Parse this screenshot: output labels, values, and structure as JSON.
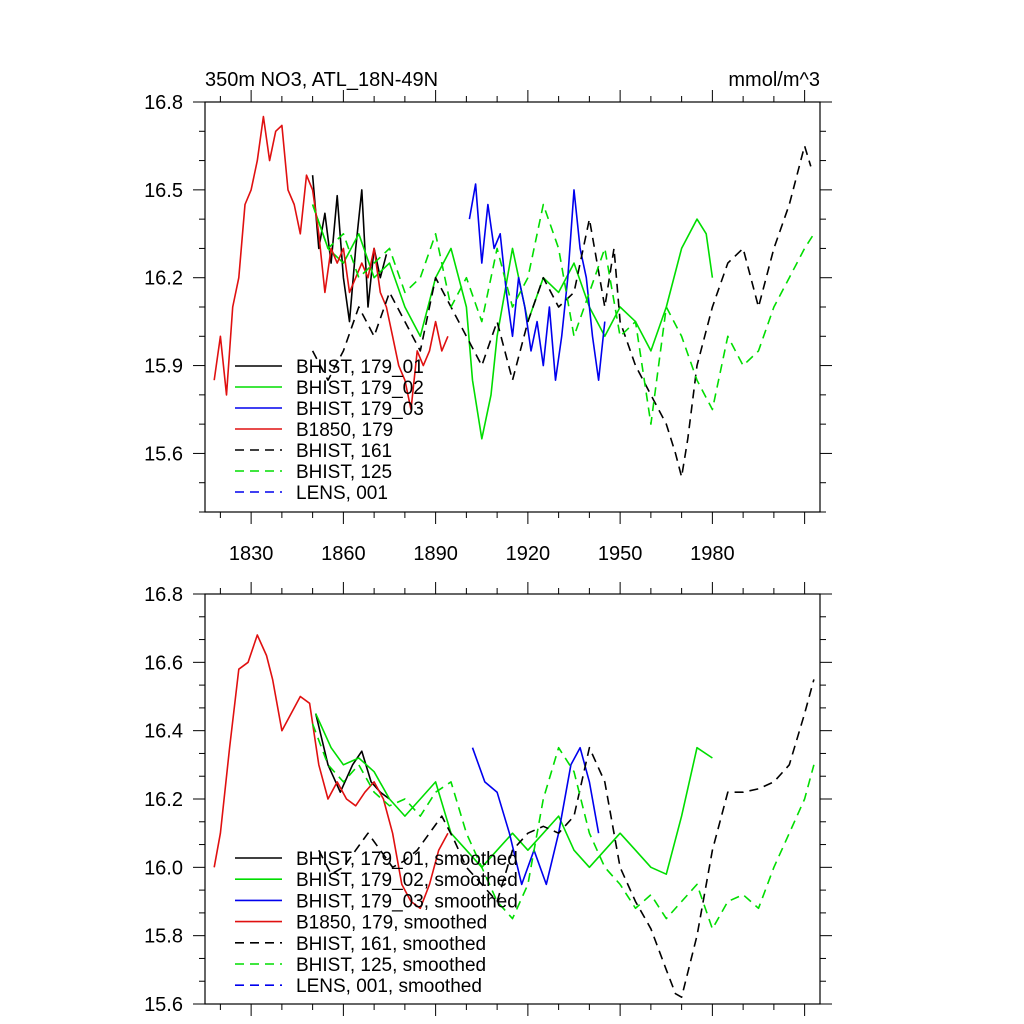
{
  "header": {
    "title": "350m NO3, ATL_18N-49N",
    "units": "mmol/m^3"
  },
  "colors": {
    "black": "#000000",
    "green": "#00dd00",
    "blue": "#0000ee",
    "red": "#e01010"
  },
  "chart_data": [
    {
      "type": "line",
      "title": "350m NO3, ATL_18N-49N",
      "ylabel": "mmol/m^3",
      "xlim": [
        1815,
        2015
      ],
      "ylim": [
        15.4,
        16.8
      ],
      "xticks": [
        1830,
        1860,
        1890,
        1920,
        1950,
        1980
      ],
      "xtick_labels": [
        "1830",
        "1860",
        "1890",
        "1920",
        "1950",
        "1980"
      ],
      "yticks": [
        15.6,
        15.9,
        16.2,
        16.5,
        16.8
      ],
      "ytick_labels": [
        "15.6",
        "15.9",
        "16.2",
        "16.5",
        "16.8"
      ],
      "legend_position": "bottom-left",
      "series": [
        {
          "name": "BHIST, 179_01",
          "color": "black",
          "dash": false,
          "x": [
            1850,
            1852,
            1854,
            1856,
            1858,
            1860,
            1862,
            1864,
            1866,
            1868,
            1870,
            1872,
            1874
          ],
          "y": [
            16.55,
            16.3,
            16.42,
            16.25,
            16.48,
            16.2,
            16.05,
            16.3,
            16.5,
            16.1,
            16.3,
            16.2,
            16.28
          ]
        },
        {
          "name": "BHIST, 179_02",
          "color": "green",
          "dash": false,
          "x": [
            1850,
            1855,
            1860,
            1865,
            1870,
            1875,
            1880,
            1885,
            1890,
            1895,
            1900,
            1902,
            1905,
            1908,
            1910,
            1915,
            1920,
            1925,
            1930,
            1935,
            1940,
            1945,
            1950,
            1955,
            1960,
            1965,
            1970,
            1975,
            1978,
            1980
          ],
          "y": [
            16.45,
            16.3,
            16.25,
            16.35,
            16.2,
            16.25,
            16.1,
            16.0,
            16.2,
            16.3,
            16.1,
            15.85,
            15.65,
            15.8,
            16.0,
            16.3,
            16.05,
            16.2,
            16.15,
            16.25,
            16.1,
            16.0,
            16.1,
            16.05,
            15.95,
            16.1,
            16.3,
            16.4,
            16.35,
            16.2
          ]
        },
        {
          "name": "BHIST, 179_03",
          "color": "blue",
          "dash": false,
          "x": [
            1901,
            1903,
            1905,
            1907,
            1909,
            1911,
            1913,
            1915,
            1917,
            1919,
            1921,
            1923,
            1925,
            1927,
            1929,
            1931,
            1933,
            1935,
            1937,
            1939,
            1941,
            1943,
            1945
          ],
          "y": [
            16.4,
            16.52,
            16.25,
            16.45,
            16.3,
            16.35,
            16.15,
            16.0,
            16.2,
            16.1,
            15.95,
            16.05,
            15.9,
            16.1,
            15.85,
            16.0,
            16.2,
            16.5,
            16.3,
            16.2,
            16.0,
            15.85,
            16.05
          ]
        },
        {
          "name": "B1850, 179",
          "color": "red",
          "dash": false,
          "x": [
            1818,
            1820,
            1822,
            1824,
            1826,
            1828,
            1830,
            1832,
            1834,
            1836,
            1838,
            1840,
            1842,
            1844,
            1846,
            1848,
            1850,
            1852,
            1854,
            1856,
            1858,
            1860,
            1862,
            1864,
            1866,
            1868,
            1870,
            1872,
            1874,
            1876,
            1878,
            1880,
            1882,
            1884,
            1886,
            1888,
            1890,
            1892,
            1894
          ],
          "y": [
            15.85,
            16.0,
            15.8,
            16.1,
            16.2,
            16.45,
            16.5,
            16.6,
            16.75,
            16.6,
            16.7,
            16.72,
            16.5,
            16.45,
            16.35,
            16.55,
            16.5,
            16.35,
            16.15,
            16.3,
            16.25,
            16.3,
            16.15,
            16.2,
            16.25,
            16.2,
            16.3,
            16.15,
            16.1,
            16.0,
            15.9,
            15.85,
            15.75,
            15.95,
            15.9,
            15.95,
            16.05,
            15.95,
            16.0
          ]
        },
        {
          "name": "BHIST, 161",
          "color": "black",
          "dash": true,
          "x": [
            1850,
            1855,
            1860,
            1865,
            1870,
            1875,
            1880,
            1885,
            1890,
            1895,
            1900,
            1905,
            1910,
            1915,
            1920,
            1925,
            1930,
            1935,
            1940,
            1945,
            1948,
            1950,
            1955,
            1960,
            1965,
            1968,
            1970,
            1972,
            1975,
            1980,
            1985,
            1990,
            1995,
            2000,
            2005,
            2010,
            2012
          ],
          "y": [
            15.95,
            15.85,
            15.95,
            16.1,
            16.0,
            16.15,
            16.05,
            15.95,
            16.2,
            16.1,
            16.0,
            15.9,
            16.05,
            15.85,
            16.05,
            16.2,
            16.1,
            16.15,
            16.4,
            16.1,
            16.3,
            16.05,
            15.9,
            15.8,
            15.7,
            15.6,
            15.52,
            15.65,
            15.9,
            16.1,
            16.25,
            16.3,
            16.1,
            16.3,
            16.45,
            16.65,
            16.58
          ]
        },
        {
          "name": "BHIST, 125",
          "color": "green",
          "dash": true,
          "x": [
            1850,
            1855,
            1860,
            1865,
            1870,
            1875,
            1880,
            1885,
            1890,
            1895,
            1900,
            1905,
            1910,
            1915,
            1920,
            1925,
            1930,
            1935,
            1940,
            1945,
            1950,
            1955,
            1960,
            1965,
            1970,
            1975,
            1980,
            1985,
            1990,
            1995,
            2000,
            2005,
            2010,
            2013
          ],
          "y": [
            16.45,
            16.3,
            16.35,
            16.2,
            16.25,
            16.3,
            16.15,
            16.2,
            16.35,
            16.1,
            16.2,
            16.05,
            16.3,
            16.1,
            16.2,
            16.45,
            16.3,
            16.0,
            16.15,
            16.3,
            16.0,
            16.05,
            15.7,
            16.1,
            16.0,
            15.85,
            15.75,
            16.0,
            15.9,
            15.95,
            16.1,
            16.2,
            16.3,
            16.35
          ]
        }
      ]
    },
    {
      "type": "line",
      "xlim": [
        1815,
        2015
      ],
      "ylim": [
        15.6,
        16.8
      ],
      "yticks": [
        15.6,
        15.8,
        16.0,
        16.2,
        16.4,
        16.6,
        16.8
      ],
      "ytick_labels": [
        "15.6",
        "15.8",
        "16.0",
        "16.2",
        "16.4",
        "16.6",
        "16.8"
      ],
      "legend_position": "bottom-left",
      "series": [
        {
          "name": "BHIST, 179_01, smoothed",
          "color": "black",
          "dash": false,
          "x": [
            1851,
            1855,
            1859,
            1863,
            1866,
            1869,
            1872,
            1875
          ],
          "y": [
            16.45,
            16.3,
            16.22,
            16.3,
            16.34,
            16.25,
            16.22,
            16.2
          ]
        },
        {
          "name": "BHIST, 179_02, smoothed",
          "color": "green",
          "dash": false,
          "x": [
            1851,
            1856,
            1860,
            1865,
            1870,
            1875,
            1880,
            1885,
            1890,
            1895,
            1900,
            1905,
            1910,
            1915,
            1920,
            1925,
            1930,
            1935,
            1940,
            1945,
            1950,
            1955,
            1960,
            1965,
            1970,
            1975,
            1980
          ],
          "y": [
            16.45,
            16.35,
            16.3,
            16.32,
            16.28,
            16.2,
            16.15,
            16.2,
            16.25,
            16.1,
            16.05,
            16.0,
            16.05,
            16.1,
            16.05,
            16.1,
            16.15,
            16.05,
            16.0,
            16.05,
            16.1,
            16.05,
            16.0,
            15.98,
            16.15,
            16.35,
            16.32
          ]
        },
        {
          "name": "BHIST, 179_03, smoothed",
          "color": "blue",
          "dash": false,
          "x": [
            1902,
            1906,
            1910,
            1914,
            1918,
            1922,
            1926,
            1930,
            1934,
            1937,
            1940,
            1943
          ],
          "y": [
            16.35,
            16.25,
            16.22,
            16.1,
            15.95,
            16.05,
            15.95,
            16.1,
            16.3,
            16.35,
            16.25,
            16.1
          ]
        },
        {
          "name": "B1850, 179, smoothed",
          "color": "red",
          "dash": false,
          "x": [
            1818,
            1820,
            1823,
            1826,
            1829,
            1832,
            1835,
            1837,
            1840,
            1843,
            1846,
            1849,
            1852,
            1855,
            1858,
            1861,
            1864,
            1867,
            1870,
            1873,
            1876,
            1879,
            1882,
            1885,
            1888,
            1891,
            1894
          ],
          "y": [
            16.0,
            16.1,
            16.35,
            16.58,
            16.6,
            16.68,
            16.62,
            16.55,
            16.4,
            16.45,
            16.5,
            16.48,
            16.3,
            16.2,
            16.25,
            16.2,
            16.18,
            16.22,
            16.25,
            16.2,
            16.1,
            15.95,
            15.9,
            15.88,
            15.95,
            16.05,
            16.1
          ]
        },
        {
          "name": "BHIST, 161, smoothed",
          "color": "black",
          "dash": true,
          "x": [
            1852,
            1856,
            1860,
            1864,
            1868,
            1872,
            1876,
            1880,
            1884,
            1888,
            1892,
            1896,
            1900,
            1905,
            1910,
            1915,
            1920,
            1925,
            1930,
            1935,
            1940,
            1945,
            1950,
            1955,
            1960,
            1965,
            1968,
            1970,
            1975,
            1980,
            1985,
            1990,
            1995,
            2000,
            2005,
            2010,
            2013
          ],
          "y": [
            16.05,
            15.98,
            16.0,
            16.05,
            16.1,
            16.05,
            16.0,
            16.02,
            16.05,
            16.1,
            16.15,
            16.08,
            16.0,
            15.95,
            15.9,
            16.05,
            16.1,
            16.12,
            16.1,
            16.15,
            16.35,
            16.25,
            16.0,
            15.9,
            15.82,
            15.7,
            15.63,
            15.62,
            15.8,
            16.05,
            16.22,
            16.22,
            16.23,
            16.25,
            16.3,
            16.45,
            16.55
          ]
        },
        {
          "name": "BHIST, 125, smoothed",
          "color": "green",
          "dash": true,
          "x": [
            1850,
            1855,
            1860,
            1865,
            1870,
            1875,
            1880,
            1885,
            1890,
            1895,
            1900,
            1905,
            1910,
            1915,
            1920,
            1925,
            1930,
            1935,
            1940,
            1945,
            1950,
            1955,
            1960,
            1965,
            1970,
            1975,
            1980,
            1985,
            1990,
            1995,
            2000,
            2005,
            2010,
            2013
          ],
          "y": [
            16.42,
            16.3,
            16.25,
            16.3,
            16.22,
            16.18,
            16.2,
            16.15,
            16.22,
            16.25,
            16.1,
            16.0,
            15.9,
            15.85,
            15.95,
            16.2,
            16.35,
            16.28,
            16.1,
            16.0,
            15.95,
            15.88,
            15.92,
            15.85,
            15.9,
            15.95,
            15.82,
            15.9,
            15.92,
            15.88,
            16.0,
            16.1,
            16.2,
            16.3
          ]
        }
      ]
    }
  ],
  "legend_extra": [
    {
      "name": "LENS, 001",
      "color": "blue",
      "dash": true
    },
    {
      "name": "LENS, 001, smoothed",
      "color": "blue",
      "dash": true
    }
  ]
}
